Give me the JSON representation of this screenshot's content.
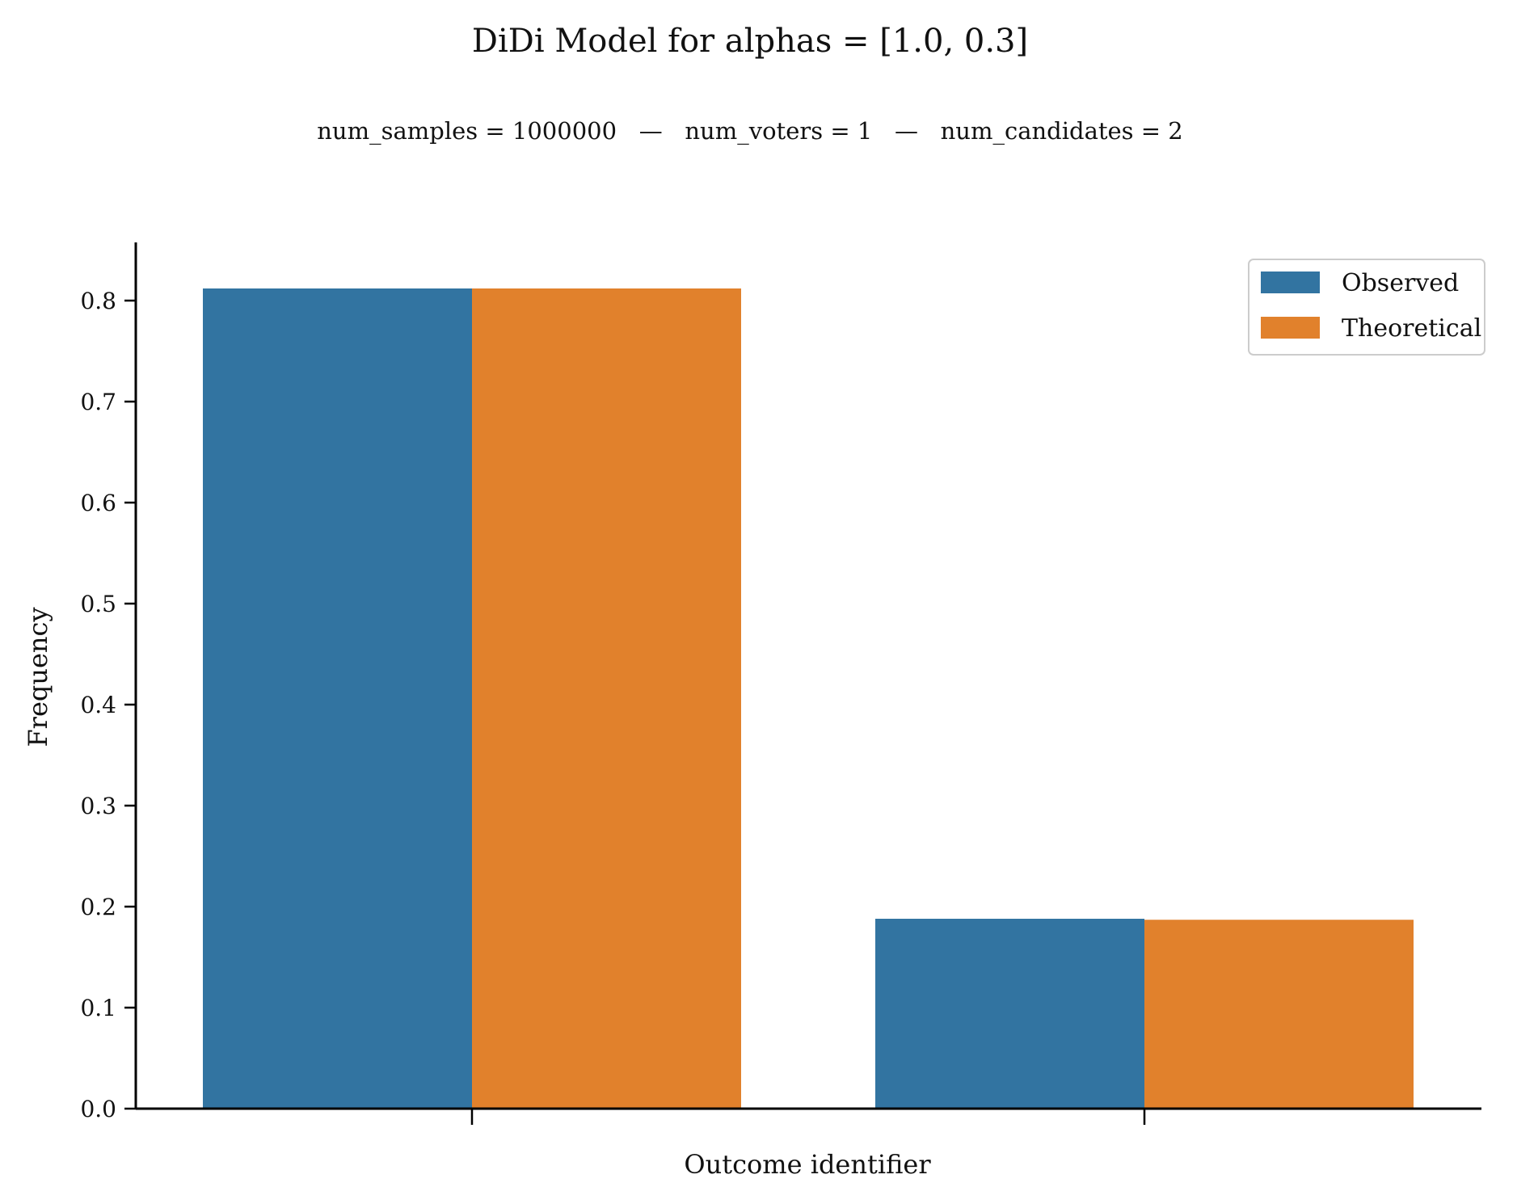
{
  "chart_data": {
    "type": "bar",
    "title": "DiDi Model for alphas = [1.0, 0.3]",
    "subtitle": "num_samples = 1000000   —   num_voters = 1   —   num_candidates = 2",
    "xlabel": "Outcome identifier",
    "ylabel": "Frequency",
    "categories": [
      "",
      ""
    ],
    "series": [
      {
        "name": "Observed",
        "values": [
          0.812,
          0.188
        ],
        "color": "#3274a1"
      },
      {
        "name": "Theoretical",
        "values": [
          0.812,
          0.187
        ],
        "color": "#e1812c"
      }
    ],
    "ylim": [
      0,
      0.85
    ],
    "yticks": [
      0.0,
      0.1,
      0.2,
      0.3,
      0.4,
      0.5,
      0.6,
      0.7,
      0.8
    ],
    "ytick_labels": [
      "0.0",
      "0.1",
      "0.2",
      "0.3",
      "0.4",
      "0.5",
      "0.6",
      "0.7",
      "0.8"
    ],
    "grid": false,
    "legend": "top-right"
  }
}
